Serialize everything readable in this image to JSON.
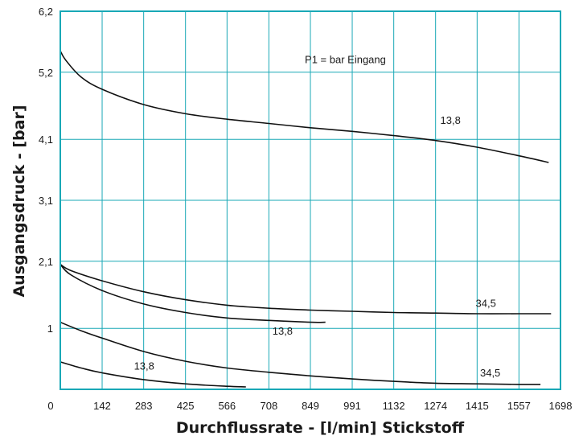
{
  "chart_data": {
    "type": "line",
    "title": "",
    "xlabel": "Durchflussrate - [l/min] Stickstoff",
    "ylabel": "Ausgangsdruck - [bar]",
    "xlim": [
      0,
      1698
    ],
    "ylim": [
      0,
      6.2
    ],
    "x_ticks": [
      0,
      142,
      283,
      425,
      566,
      708,
      849,
      991,
      1132,
      1274,
      1415,
      1557,
      1698
    ],
    "x_tick_labels": [
      "0",
      "142",
      "283",
      "425",
      "566",
      "708",
      "849",
      "991",
      "1132",
      "1274",
      "1415",
      "1557",
      "1698"
    ],
    "y_ticks": [
      0,
      1.0,
      2.1,
      3.1,
      4.1,
      5.2,
      6.2
    ],
    "y_tick_labels": [
      "",
      "1",
      "2,1",
      "3,1",
      "4,1",
      "5,2",
      "6,2"
    ],
    "grid": true,
    "colors": {
      "axis": "#19a8b6",
      "grid": "#19a8b6",
      "curve": "#111111"
    },
    "legend_note": "P1 = bar Eingang",
    "series": [
      {
        "x": [
          0,
          18,
          71,
          142,
          283,
          425,
          566,
          708,
          849,
          991,
          1132,
          1274,
          1415,
          1557,
          1658
        ],
        "y": [
          5.55,
          5.4,
          5.12,
          4.92,
          4.67,
          4.52,
          4.43,
          4.36,
          4.29,
          4.23,
          4.16,
          4.08,
          3.97,
          3.83,
          3.72
        ]
      },
      {
        "x": [
          0,
          35,
          142,
          283,
          425,
          566,
          708,
          849,
          991,
          1132,
          1274,
          1415,
          1557,
          1666
        ],
        "y": [
          2.05,
          1.95,
          1.78,
          1.6,
          1.47,
          1.38,
          1.33,
          1.3,
          1.28,
          1.26,
          1.25,
          1.24,
          1.24,
          1.24
        ]
      },
      {
        "x": [
          0,
          35,
          142,
          283,
          425,
          566,
          708,
          849,
          900
        ],
        "y": [
          2.05,
          1.88,
          1.62,
          1.4,
          1.26,
          1.17,
          1.13,
          1.1,
          1.1
        ]
      },
      {
        "x": [
          0,
          71,
          142,
          283,
          425,
          566,
          708,
          849,
          991,
          1132,
          1274,
          1415,
          1557,
          1630
        ],
        "y": [
          1.1,
          0.96,
          0.84,
          0.62,
          0.46,
          0.35,
          0.28,
          0.22,
          0.17,
          0.13,
          0.1,
          0.09,
          0.08,
          0.08
        ]
      },
      {
        "x": [
          0,
          71,
          142,
          283,
          425,
          566,
          630
        ],
        "y": [
          0.45,
          0.35,
          0.27,
          0.16,
          0.09,
          0.05,
          0.04
        ]
      }
    ],
    "curve_labels": [
      {
        "text": "13,8",
        "x": 1290,
        "y": 4.35
      },
      {
        "text": "34,5",
        "x": 1410,
        "y": 1.35
      },
      {
        "text": "13,8",
        "x": 720,
        "y": 0.9
      },
      {
        "text": "34,5",
        "x": 1425,
        "y": 0.21
      },
      {
        "text": "13,8",
        "x": 250,
        "y": 0.32
      }
    ],
    "legend_note_pos": {
      "x": 830,
      "y": 5.35
    }
  }
}
